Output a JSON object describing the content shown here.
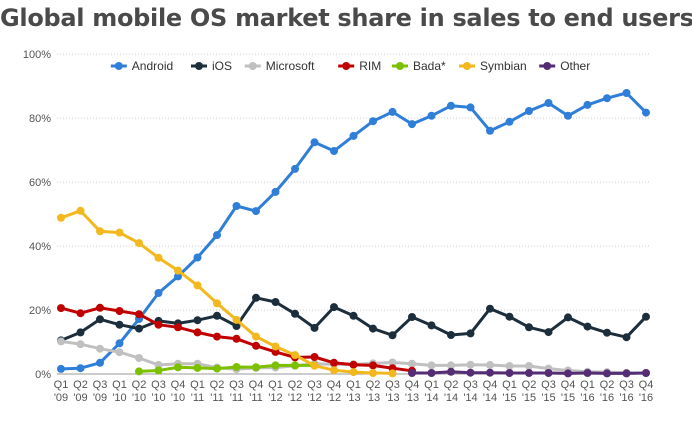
{
  "chart_data": {
    "type": "line",
    "title": "Global mobile OS market share in sales to end users",
    "xlabel": "",
    "ylabel": "",
    "ylim": [
      0,
      100
    ],
    "yticks": [
      0,
      20,
      40,
      60,
      80,
      100
    ],
    "ytick_labels": [
      "0%",
      "20%",
      "40%",
      "60%",
      "80%",
      "100%"
    ],
    "grid": true,
    "legend_position": "top",
    "categories": [
      [
        "Q1",
        "'09"
      ],
      [
        "Q2",
        "'09"
      ],
      [
        "Q3",
        "'09"
      ],
      [
        "Q1",
        "'10"
      ],
      [
        "Q2",
        "'10"
      ],
      [
        "Q3",
        "'10"
      ],
      [
        "Q4",
        "'10"
      ],
      [
        "Q1",
        "'11"
      ],
      [
        "Q2",
        "'11"
      ],
      [
        "Q3",
        "'11"
      ],
      [
        "Q4",
        "'11"
      ],
      [
        "Q1",
        "'12"
      ],
      [
        "Q2",
        "'12"
      ],
      [
        "Q3",
        "'12"
      ],
      [
        "Q4",
        "'12"
      ],
      [
        "Q1",
        "'13"
      ],
      [
        "Q2",
        "'13"
      ],
      [
        "Q3",
        "'13"
      ],
      [
        "Q4",
        "'13"
      ],
      [
        "Q1",
        "'14"
      ],
      [
        "Q2",
        "'14"
      ],
      [
        "Q3",
        "'14"
      ],
      [
        "Q4",
        "'14"
      ],
      [
        "Q1",
        "'15"
      ],
      [
        "Q2",
        "'15"
      ],
      [
        "Q3",
        "'15"
      ],
      [
        "Q4",
        "'15"
      ],
      [
        "Q1",
        "'16"
      ],
      [
        "Q2",
        "'16"
      ],
      [
        "Q3",
        "'16"
      ],
      [
        "Q4",
        "'16"
      ]
    ],
    "series": [
      {
        "name": "Android",
        "color": "#2f7ed8",
        "values": [
          1.6,
          1.8,
          3.5,
          9.6,
          17.2,
          25.3,
          30.5,
          36.4,
          43.4,
          52.5,
          50.9,
          56.9,
          64.1,
          72.4,
          69.7,
          74.4,
          79.0,
          81.9,
          78.1,
          80.7,
          83.8,
          83.3,
          76.0,
          78.8,
          82.2,
          84.7,
          80.7,
          84.1,
          86.2,
          87.8,
          81.7
        ]
      },
      {
        "name": "iOS",
        "color": "#1c2e3c",
        "values": [
          10.5,
          13.0,
          17.1,
          15.4,
          14.2,
          16.6,
          15.8,
          16.8,
          18.2,
          15.0,
          23.8,
          22.5,
          18.8,
          14.4,
          20.9,
          18.2,
          14.2,
          12.1,
          17.8,
          15.2,
          12.2,
          12.7,
          20.4,
          17.9,
          14.6,
          13.1,
          17.7,
          14.8,
          12.9,
          11.5,
          17.9
        ]
      },
      {
        "name": "Microsoft",
        "color": "#c0c0c0",
        "values": [
          10.2,
          9.3,
          7.9,
          6.8,
          5.0,
          2.8,
          3.2,
          3.2,
          2.0,
          1.5,
          1.9,
          2.0,
          2.6,
          3.2,
          3.0,
          3.0,
          3.3,
          3.6,
          3.2,
          2.7,
          2.7,
          2.9,
          2.8,
          2.5,
          2.5,
          1.7,
          1.1,
          0.7,
          0.6,
          0.4,
          0.3
        ]
      },
      {
        "name": "RIM",
        "color": "#c00000",
        "values": [
          20.6,
          19.0,
          20.7,
          19.7,
          18.7,
          15.4,
          14.6,
          13.0,
          11.7,
          11.0,
          8.8,
          6.9,
          5.2,
          5.3,
          3.5,
          2.9,
          2.7,
          1.8,
          1.0,
          null,
          null,
          null,
          null,
          null,
          null,
          null,
          null,
          null,
          null,
          null,
          null
        ]
      },
      {
        "name": "Bada*",
        "color": "#7cc000",
        "values": [
          null,
          null,
          null,
          null,
          0.8,
          1.1,
          2.1,
          1.9,
          1.7,
          2.2,
          2.1,
          2.7,
          2.7,
          2.7,
          null,
          null,
          null,
          null,
          null,
          null,
          null,
          null,
          null,
          null,
          null,
          null,
          null,
          null,
          null,
          null,
          null
        ]
      },
      {
        "name": "Symbian",
        "color": "#f2b81d",
        "values": [
          48.8,
          51.0,
          44.6,
          44.2,
          40.9,
          36.3,
          32.3,
          27.7,
          22.1,
          16.9,
          11.7,
          8.6,
          5.9,
          2.6,
          1.2,
          0.6,
          0.3,
          0.2,
          null,
          null,
          null,
          null,
          null,
          null,
          null,
          null,
          null,
          null,
          null,
          null,
          null
        ]
      },
      {
        "name": "Other",
        "color": "#552d75",
        "values": [
          null,
          null,
          null,
          null,
          null,
          null,
          null,
          null,
          null,
          null,
          null,
          null,
          null,
          null,
          null,
          null,
          null,
          null,
          0.3,
          0.3,
          0.7,
          0.4,
          0.4,
          0.3,
          0.3,
          0.3,
          0.2,
          0.3,
          0.2,
          0.2,
          0.3
        ]
      }
    ]
  }
}
